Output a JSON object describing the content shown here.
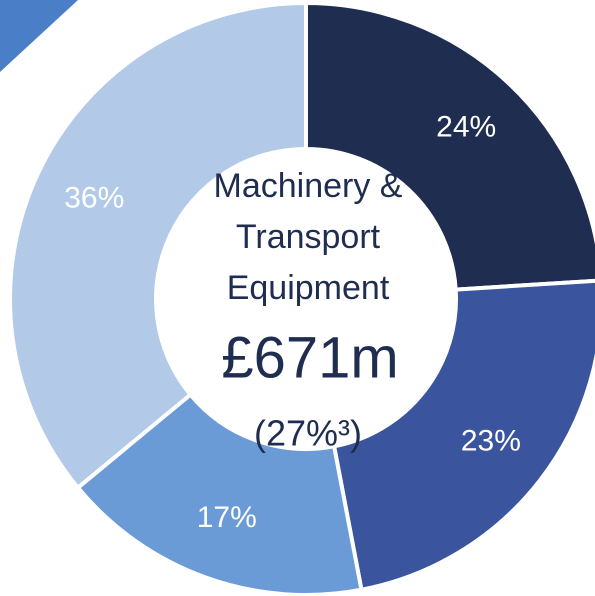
{
  "chart_data": {
    "type": "donut",
    "center_title_lines": [
      "Machinery &",
      "Transport",
      "Equipment"
    ],
    "center_value": "£671m",
    "center_note": "(27%³)",
    "categories": [
      null,
      null,
      null,
      null
    ],
    "values": [
      24,
      23,
      17,
      36
    ],
    "value_labels": [
      "24%",
      "23%",
      "17%",
      "36%"
    ],
    "colors": [
      "#1f2d50",
      "#3a559e",
      "#6b9bd6",
      "#b3c9e8"
    ]
  }
}
